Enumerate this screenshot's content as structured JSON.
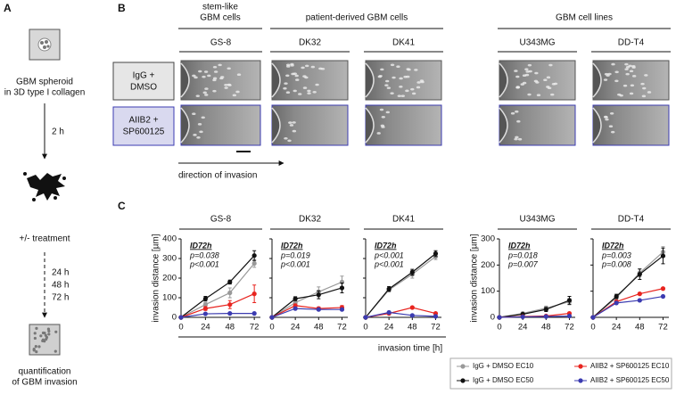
{
  "panel_a": {
    "label": "A",
    "spheroid_caption": [
      "GBM spheroid",
      "in 3D type I collagen"
    ],
    "step": "2 h",
    "treatment": "+/- treatment",
    "times": [
      "24 h",
      "48 h",
      "72 h"
    ],
    "result_caption": [
      "quantification",
      "of GBM invasion"
    ]
  },
  "panel_b": {
    "label": "B",
    "groups": [
      {
        "lines": [
          "stem-like",
          "GBM cells"
        ]
      },
      {
        "lines": [
          "patient-derived GBM cells"
        ]
      },
      {
        "lines": [
          "GBM cell lines"
        ]
      }
    ],
    "columns": [
      "GS-8",
      "DK32",
      "DK41",
      "U343MG",
      "DD-T4"
    ],
    "rows": [
      {
        "lines": [
          "IgG +",
          "DMSO"
        ]
      },
      {
        "lines": [
          "AIIB2 +",
          "SP600125"
        ]
      }
    ],
    "direction": "direction of invasion"
  },
  "panel_c": {
    "label": "C",
    "xlabel": "invasion time [h]"
  },
  "chart_data": [
    {
      "type": "line",
      "title": "GS-8",
      "ylabel": "invasion distance [µm]",
      "x": [
        0,
        24,
        48,
        72
      ],
      "xlim": [
        0,
        78
      ],
      "xticks": [
        0,
        24,
        48,
        72
      ],
      "ylim": [
        0,
        400
      ],
      "yticks": [
        0,
        100,
        200,
        300,
        400
      ],
      "annotation": {
        "title": "ID72h",
        "p_ec10": "p=0.038",
        "p_ec50": "p<0.001"
      },
      "series": [
        {
          "name": "IgG + DMSO EC10",
          "color": "#999999",
          "values": [
            0,
            65,
            125,
            275
          ],
          "errors": [
            0,
            10,
            25,
            20
          ]
        },
        {
          "name": "IgG + DMSO EC50",
          "color": "#111111",
          "values": [
            0,
            95,
            180,
            315
          ],
          "errors": [
            0,
            12,
            10,
            25
          ]
        },
        {
          "name": "AIIB2 + SP600125 EC10",
          "color": "#e8241f",
          "values": [
            0,
            45,
            65,
            120
          ],
          "errors": [
            0,
            10,
            20,
            45
          ]
        },
        {
          "name": "AIIB2 + SP600125 EC50",
          "color": "#3b3bb0",
          "values": [
            0,
            18,
            20,
            20
          ],
          "errors": [
            0,
            3,
            3,
            3
          ]
        }
      ]
    },
    {
      "type": "line",
      "title": "DK32",
      "x": [
        0,
        24,
        48,
        72
      ],
      "xlim": [
        0,
        78
      ],
      "xticks": [
        0,
        24,
        48,
        72
      ],
      "ylim": [
        0,
        400
      ],
      "yticks": [
        0,
        100,
        200,
        300,
        400
      ],
      "annotation": {
        "title": "ID72h",
        "p_ec10": "p=0.019",
        "p_ec50": "p<0.001"
      },
      "series": [
        {
          "name": "IgG + DMSO EC10",
          "color": "#999999",
          "values": [
            0,
            75,
            130,
            180
          ],
          "errors": [
            0,
            10,
            25,
            30
          ]
        },
        {
          "name": "IgG + DMSO EC50",
          "color": "#111111",
          "values": [
            0,
            95,
            115,
            150
          ],
          "errors": [
            0,
            10,
            20,
            25
          ]
        },
        {
          "name": "AIIB2 + SP600125 EC10",
          "color": "#e8241f",
          "values": [
            0,
            60,
            45,
            50
          ],
          "errors": [
            0,
            8,
            8,
            10
          ]
        },
        {
          "name": "AIIB2 + SP600125 EC50",
          "color": "#3b3bb0",
          "values": [
            0,
            45,
            40,
            40
          ],
          "errors": [
            0,
            5,
            5,
            5
          ]
        }
      ]
    },
    {
      "type": "line",
      "title": "DK41",
      "x": [
        0,
        24,
        48,
        72
      ],
      "xlim": [
        0,
        78
      ],
      "xticks": [
        0,
        24,
        48,
        72
      ],
      "ylim": [
        0,
        400
      ],
      "yticks": [
        0,
        100,
        200,
        300,
        400
      ],
      "annotation": {
        "title": "ID72h",
        "p_ec10": "p<0.001",
        "p_ec50": "p<0.001"
      },
      "series": [
        {
          "name": "IgG + DMSO EC10",
          "color": "#999999",
          "values": [
            0,
            140,
            220,
            310
          ],
          "errors": [
            0,
            10,
            20,
            15
          ]
        },
        {
          "name": "IgG + DMSO EC50",
          "color": "#111111",
          "values": [
            0,
            145,
            230,
            325
          ],
          "errors": [
            0,
            12,
            15,
            15
          ]
        },
        {
          "name": "AIIB2 + SP600125 EC10",
          "color": "#e8241f",
          "values": [
            0,
            20,
            50,
            20
          ],
          "errors": [
            0,
            3,
            5,
            3
          ]
        },
        {
          "name": "AIIB2 + SP600125 EC50",
          "color": "#3b3bb0",
          "values": [
            0,
            25,
            10,
            5
          ],
          "errors": [
            0,
            3,
            3,
            2
          ]
        }
      ]
    },
    {
      "type": "line",
      "title": "U343MG",
      "ylabel": "invasion distance [µm]",
      "x": [
        0,
        24,
        48,
        72
      ],
      "xlim": [
        0,
        78
      ],
      "xticks": [
        0,
        24,
        48,
        72
      ],
      "ylim": [
        0,
        300
      ],
      "yticks": [
        0,
        100,
        200,
        300
      ],
      "annotation": {
        "title": "ID72h",
        "p_ec10": "p=0.018",
        "p_ec50": "p=0.007"
      },
      "series": [
        {
          "name": "IgG + DMSO EC10",
          "color": "#999999",
          "values": [
            0,
            15,
            35,
            60
          ],
          "errors": [
            0,
            4,
            8,
            12
          ]
        },
        {
          "name": "IgG + DMSO EC50",
          "color": "#111111",
          "values": [
            0,
            12,
            30,
            65
          ],
          "errors": [
            0,
            4,
            8,
            15
          ]
        },
        {
          "name": "AIIB2 + SP600125 EC10",
          "color": "#e8241f",
          "values": [
            0,
            3,
            5,
            15
          ],
          "errors": [
            0,
            2,
            2,
            4
          ]
        },
        {
          "name": "AIIB2 + SP600125 EC50",
          "color": "#3b3bb0",
          "values": [
            0,
            2,
            3,
            5
          ],
          "errors": [
            0,
            1,
            1,
            2
          ]
        }
      ]
    },
    {
      "type": "line",
      "title": "DD-T4",
      "x": [
        0,
        24,
        48,
        72
      ],
      "xlim": [
        0,
        78
      ],
      "xticks": [
        0,
        24,
        48,
        72
      ],
      "ylim": [
        0,
        300
      ],
      "yticks": [
        0,
        100,
        200,
        300
      ],
      "annotation": {
        "title": "ID72h",
        "p_ec10": "p=0.003",
        "p_ec50": "p=0.008"
      },
      "series": [
        {
          "name": "IgG + DMSO EC10",
          "color": "#999999",
          "values": [
            0,
            75,
            170,
            250
          ],
          "errors": [
            0,
            8,
            15,
            20
          ]
        },
        {
          "name": "IgG + DMSO EC50",
          "color": "#111111",
          "values": [
            0,
            80,
            165,
            235
          ],
          "errors": [
            0,
            8,
            20,
            30
          ]
        },
        {
          "name": "AIIB2 + SP600125 EC10",
          "color": "#e8241f",
          "values": [
            0,
            60,
            90,
            110
          ],
          "errors": [
            0,
            4,
            4,
            4
          ]
        },
        {
          "name": "AIIB2 + SP600125 EC50",
          "color": "#3b3bb0",
          "values": [
            0,
            55,
            65,
            80
          ],
          "errors": [
            0,
            4,
            4,
            4
          ]
        }
      ]
    }
  ]
}
